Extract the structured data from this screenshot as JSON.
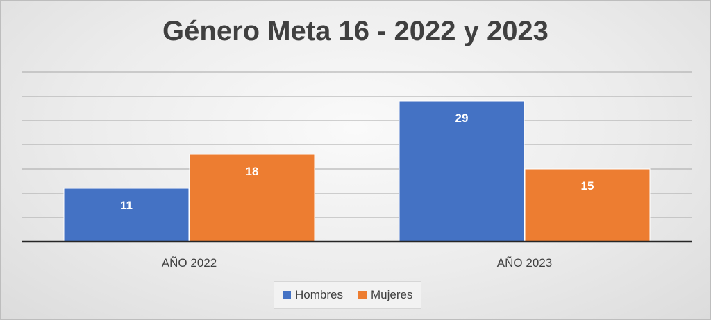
{
  "chart_data": {
    "type": "bar",
    "title": "Género Meta 16 - 2022 y 2023",
    "categories": [
      "AÑO 2022",
      "AÑO 2023"
    ],
    "series": [
      {
        "name": "Hombres",
        "values": [
          11,
          29
        ],
        "color": "#4472C4"
      },
      {
        "name": "Mujeres",
        "values": [
          18,
          15
        ],
        "color": "#ED7D31"
      }
    ],
    "xlabel": "",
    "ylabel": "",
    "ylim": [
      0,
      35
    ],
    "grid": true,
    "legend": "bottom",
    "data_labels": true
  }
}
